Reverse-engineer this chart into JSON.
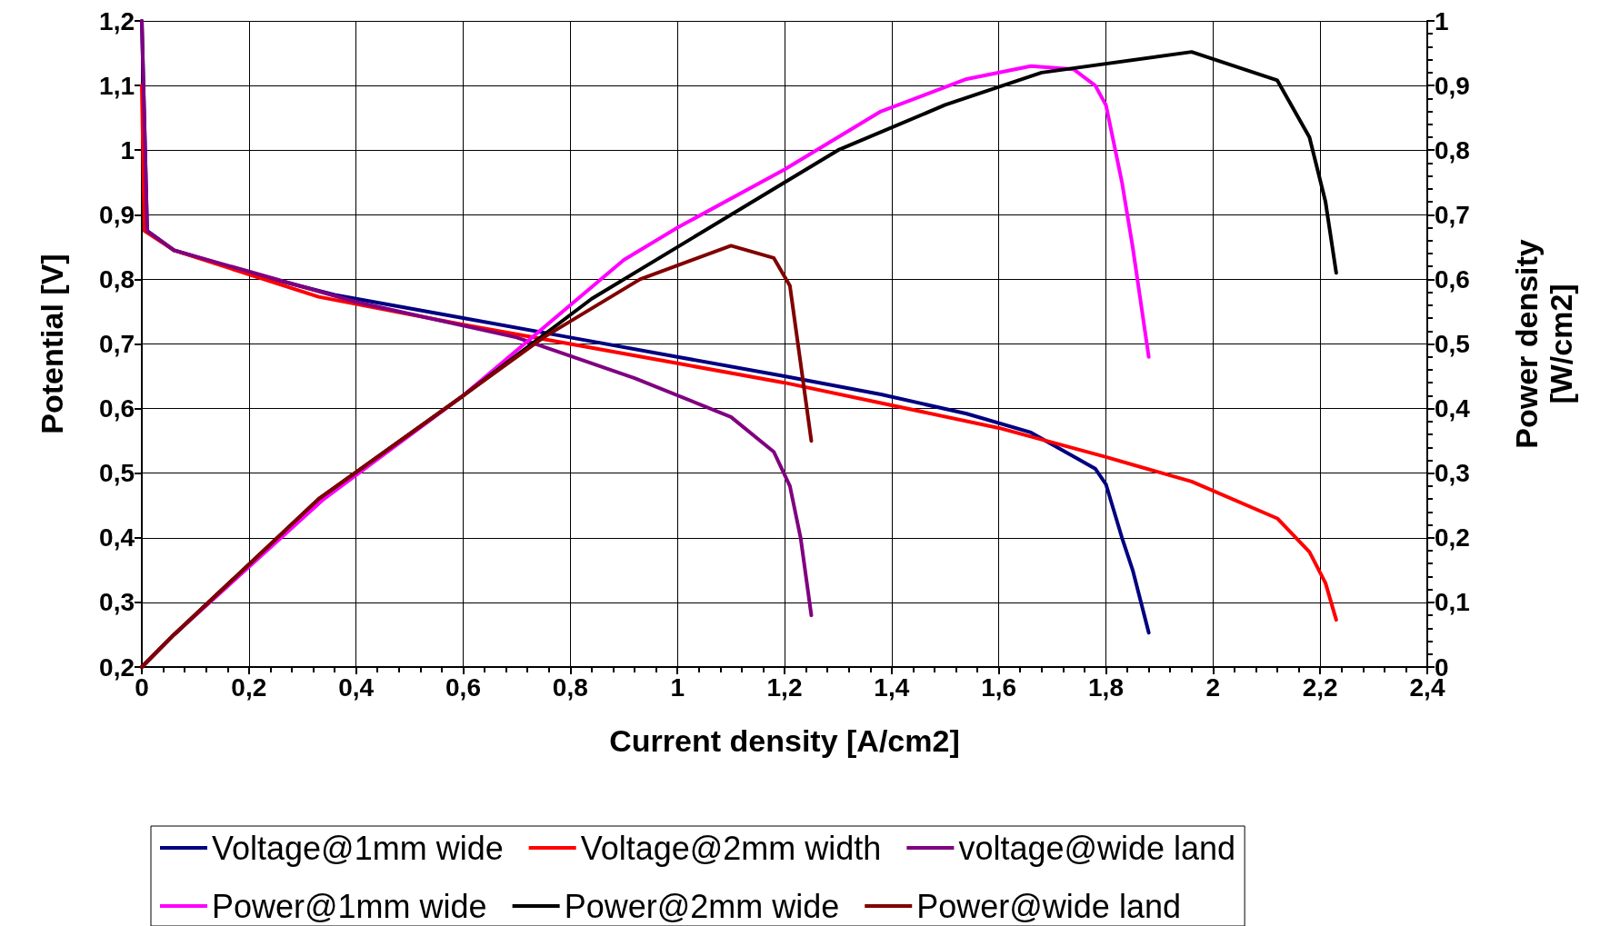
{
  "chart_data": {
    "type": "line",
    "xlabel": "Current density [A/cm2]",
    "ylabel": "Potential [V]",
    "y2label": "Power density\n[W/cm2]",
    "xlim": [
      0,
      2.4
    ],
    "xticks": [
      0,
      {
        "value": 0.2,
        "label": "0,2"
      },
      {
        "value": 0.4,
        "label": "0,4"
      },
      {
        "value": 0.6,
        "label": "0,6"
      },
      {
        "value": 0.8,
        "label": "0,8"
      },
      1,
      {
        "value": 1.2,
        "label": "1,2"
      },
      {
        "value": 1.4,
        "label": "1,4"
      },
      {
        "value": 1.6,
        "label": "1,6"
      },
      {
        "value": 1.8,
        "label": "1,8"
      },
      2,
      {
        "value": 2.2,
        "label": "2,2"
      },
      {
        "value": 2.4,
        "label": "2,4"
      }
    ],
    "ylim": [
      0.2,
      1.2
    ],
    "yticks": [
      {
        "value": 0.2,
        "label": "0,2"
      },
      {
        "value": 0.3,
        "label": "0,3"
      },
      {
        "value": 0.4,
        "label": "0,4"
      },
      {
        "value": 0.5,
        "label": "0,5"
      },
      {
        "value": 0.6,
        "label": "0,6"
      },
      {
        "value": 0.7,
        "label": "0,7"
      },
      {
        "value": 0.8,
        "label": "0,8"
      },
      {
        "value": 0.9,
        "label": "0,9"
      },
      1,
      {
        "value": 1.1,
        "label": "1,1"
      },
      {
        "value": 1.2,
        "label": "1,2"
      }
    ],
    "y2lim": [
      0,
      1
    ],
    "y2ticks": [
      0,
      {
        "value": 0.1,
        "label": "0,1"
      },
      {
        "value": 0.2,
        "label": "0,2"
      },
      {
        "value": 0.3,
        "label": "0,3"
      },
      {
        "value": 0.4,
        "label": "0,4"
      },
      {
        "value": 0.5,
        "label": "0,5"
      },
      {
        "value": 0.6,
        "label": "0,6"
      },
      {
        "value": 0.7,
        "label": "0,7"
      },
      {
        "value": 0.8,
        "label": "0,8"
      },
      {
        "value": 0.9,
        "label": "0,9"
      },
      1
    ],
    "grid": true,
    "legend": "bottom",
    "marker": "none",
    "line_style": "solid",
    "series": [
      {
        "name": "Voltage@1mm wide",
        "color": "#000080",
        "x": [
          0,
          0.01,
          0.06,
          0.2,
          0.36,
          0.6,
          0.8,
          1.0,
          1.2,
          1.38,
          1.54,
          1.66,
          1.78,
          1.8,
          1.83,
          1.85,
          1.88
        ],
        "values": [
          1.2,
          0.875,
          0.845,
          0.81,
          0.776,
          0.74,
          0.71,
          0.68,
          0.65,
          0.622,
          0.592,
          0.563,
          0.507,
          0.483,
          0.4,
          0.35,
          0.253
        ]
      },
      {
        "name": "Voltage@2mm width",
        "color": "#ff0000",
        "x": [
          0,
          0.005,
          0.06,
          0.33,
          0.6,
          0.8,
          1.0,
          1.2,
          1.4,
          1.6,
          1.8,
          1.96,
          2.12,
          2.18,
          2.21,
          2.23
        ],
        "values": [
          1.1,
          0.875,
          0.845,
          0.773,
          0.73,
          0.7,
          0.67,
          0.64,
          0.605,
          0.57,
          0.525,
          0.487,
          0.43,
          0.378,
          0.33,
          0.273
        ]
      },
      {
        "name": "voltage@wide land",
        "color": "#800080",
        "x": [
          0,
          0.01,
          0.06,
          0.4,
          0.7,
          0.92,
          1.1,
          1.18,
          1.21,
          1.23,
          1.25
        ],
        "values": [
          1.2,
          0.875,
          0.845,
          0.765,
          0.71,
          0.647,
          0.587,
          0.533,
          0.48,
          0.4,
          0.28
        ]
      },
      {
        "name": "Power@1mm wide",
        "color": "#ff00ff",
        "axis": "y2",
        "x": [
          0,
          0.06,
          0.34,
          0.6,
          0.8,
          0.9,
          1.0,
          1.2,
          1.38,
          1.54,
          1.66,
          1.74,
          1.78,
          1.8,
          1.83,
          1.85,
          1.88
        ],
        "values": [
          0,
          0.05,
          0.26,
          0.42,
          0.56,
          0.63,
          0.68,
          0.77,
          0.86,
          0.91,
          0.93,
          0.925,
          0.9,
          0.87,
          0.75,
          0.65,
          0.48
        ]
      },
      {
        "name": "Power@2mm wide",
        "color": "#000000",
        "axis": "y2",
        "x": [
          0,
          0.06,
          0.33,
          0.6,
          0.84,
          1.0,
          1.2,
          1.3,
          1.5,
          1.68,
          1.96,
          2.12,
          2.18,
          2.21,
          2.23
        ],
        "values": [
          0,
          0.05,
          0.26,
          0.42,
          0.57,
          0.65,
          0.75,
          0.8,
          0.87,
          0.92,
          0.952,
          0.908,
          0.82,
          0.72,
          0.61
        ]
      },
      {
        "name": "Power@wide land",
        "color": "#800000",
        "axis": "y2",
        "x": [
          0,
          0.06,
          0.33,
          0.6,
          0.75,
          0.93,
          1.1,
          1.18,
          1.21,
          1.23,
          1.25
        ],
        "values": [
          0,
          0.05,
          0.26,
          0.42,
          0.51,
          0.6,
          0.652,
          0.633,
          0.59,
          0.47,
          0.35
        ]
      }
    ]
  }
}
